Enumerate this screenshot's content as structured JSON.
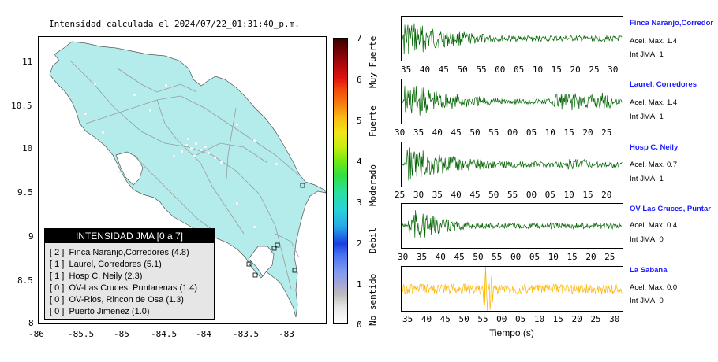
{
  "title": "Intensidad calculada el 2024/07/22_01:31:40_p.m.",
  "map": {
    "lon_ticks": [
      "-86",
      "-85.5",
      "-85",
      "-84.5",
      "-84",
      "-83.5",
      "-83"
    ],
    "lat_ticks": [
      "11",
      "10.5",
      "10",
      "9.5",
      "9",
      "8.5",
      "8"
    ],
    "land_color": "#b4ecec",
    "station_color": "#ffffff"
  },
  "legend": {
    "title": "INTENSIDAD JMA [0 a 7]",
    "rows": [
      {
        "text": "[ 2 ]  Finca Naranjo,Corredores (4.8)"
      },
      {
        "text": "[ 1 ]  Laurel, Corredores (5.1)"
      },
      {
        "text": "[ 1 ]  Hosp C. Neily (2.3)"
      },
      {
        "text": "[ 0 ]  OV-Las Cruces, Puntarenas (1.4)"
      },
      {
        "text": "[ 0 ]  OV-Rios, Rincon de Osa (1.3)"
      },
      {
        "text": "[ 0 ]  Puerto Jimenez (1.0)"
      }
    ]
  },
  "colorbar": {
    "ticks": [
      "7",
      "6",
      "5",
      "4",
      "3",
      "2",
      "1",
      "0"
    ],
    "labels": [
      "Muy Fuerte",
      "Fuerte",
      "Moderado",
      "Debil",
      "No sentido"
    ]
  },
  "waveforms": {
    "xlabel": "Tiempo (s)",
    "panels": [
      {
        "station": "Finca Naranjo,Corredor",
        "acel": "Acel. Max. 1.4",
        "jma": "Int JMA: 1",
        "color": "#006400",
        "ticks": [
          "35",
          "40",
          "45",
          "50",
          "55",
          "00",
          "05",
          "10",
          "15",
          "20",
          "25",
          "30"
        ]
      },
      {
        "station": "Laurel, Corredores",
        "acel": "Acel. Max. 1.4",
        "jma": "Int JMA: 1",
        "color": "#006400",
        "ticks": [
          "30",
          "35",
          "40",
          "45",
          "50",
          "55",
          "00",
          "05",
          "10",
          "15",
          "20",
          "25"
        ]
      },
      {
        "station": "Hosp C. Neily",
        "acel": "Acel. Max. 0.7",
        "jma": "Int JMA: 1",
        "color": "#006400",
        "ticks": [
          "25",
          "30",
          "35",
          "40",
          "45",
          "50",
          "55",
          "00",
          "05",
          "10",
          "15",
          "20"
        ]
      },
      {
        "station": "OV-Las Cruces, Puntar",
        "acel": "Acel. Max. 0.4",
        "jma": "Int JMA: 0",
        "color": "#006400",
        "ticks": [
          "30",
          "35",
          "40",
          "45",
          "50",
          "55",
          "00",
          "05",
          "10",
          "15",
          "20",
          "25"
        ]
      },
      {
        "station": "La Sabana",
        "acel": "Acel. Max. 0.0",
        "jma": "Int JMA: 0",
        "color": "#ffb400",
        "ticks": [
          "35",
          "40",
          "45",
          "50",
          "55",
          "00",
          "05",
          "10",
          "15",
          "20",
          "25",
          "30"
        ]
      }
    ]
  },
  "chart_data": {
    "type": "heatmap",
    "title": "Intensidad calculada el 2024/07/22_01:31:40_p.m.",
    "xlim": [
      -86,
      -82.5
    ],
    "ylim": [
      8,
      11.3
    ],
    "colorbar_range": [
      0,
      7
    ],
    "colorbar_labels": [
      "Muy Fuerte",
      "Fuerte",
      "Moderado",
      "Debil",
      "No sentido"
    ],
    "stations": [
      {
        "name": "Finca Naranjo,Corredores",
        "jma_class": 2,
        "intensity": 4.8
      },
      {
        "name": "Laurel, Corredores",
        "jma_class": 1,
        "intensity": 5.1
      },
      {
        "name": "Hosp C. Neily",
        "jma_class": 1,
        "intensity": 2.3
      },
      {
        "name": "OV-Las Cruces, Puntarenas",
        "jma_class": 0,
        "intensity": 1.4
      },
      {
        "name": "OV-Rios, Rincon de Osa",
        "jma_class": 0,
        "intensity": 1.3
      },
      {
        "name": "Puerto Jimenez",
        "jma_class": 0,
        "intensity": 1.0
      }
    ],
    "waveform_peaks": [
      {
        "station": "Finca Naranjo,Corredor",
        "acel_max": 1.4,
        "int_jma": 1
      },
      {
        "station": "Laurel, Corredores",
        "acel_max": 1.4,
        "int_jma": 1
      },
      {
        "station": "Hosp C. Neily",
        "acel_max": 0.7,
        "int_jma": 1
      },
      {
        "station": "OV-Las Cruces, Puntar",
        "acel_max": 0.4,
        "int_jma": 0
      },
      {
        "station": "La Sabana",
        "acel_max": 0.0,
        "int_jma": 0
      }
    ]
  }
}
